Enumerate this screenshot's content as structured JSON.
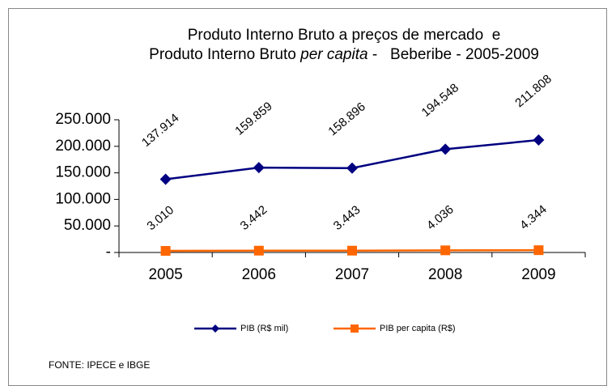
{
  "chart_data": {
    "type": "line",
    "title_lines": [
      [
        "Produto Interno Bruto a preços de mercado  e"
      ],
      [
        "Produto Interno Bruto ",
        "per capita",
        " -   Beberibe - 2005-2009"
      ]
    ],
    "categories": [
      "2005",
      "2006",
      "2007",
      "2008",
      "2009"
    ],
    "series": [
      {
        "name": "PIB (R$ mil)",
        "color": "#000080",
        "marker": "diamond",
        "values": [
          137914,
          159859,
          158896,
          194548,
          211808
        ],
        "value_labels": [
          "137.914",
          "159.859",
          "158.896",
          "194.548",
          "211.808"
        ]
      },
      {
        "name": "PIB per capita (R$)",
        "color": "#ff6600",
        "marker": "square",
        "values": [
          3010,
          3442,
          3443,
          4036,
          4344
        ],
        "value_labels": [
          "3.010",
          "3.442",
          "3.443",
          "4.036",
          "4.344"
        ]
      }
    ],
    "ylim": [
      0,
      250000
    ],
    "yticks": [
      {
        "value": 0,
        "label": "-"
      },
      {
        "value": 50000,
        "label": "50.000"
      },
      {
        "value": 100000,
        "label": "100.000"
      },
      {
        "value": 150000,
        "label": "150.000"
      },
      {
        "value": 200000,
        "label": "200.000"
      },
      {
        "value": 250000,
        "label": "250.000"
      }
    ],
    "legend": "bottom",
    "source": "FONTE: IPECE e IBGE"
  }
}
